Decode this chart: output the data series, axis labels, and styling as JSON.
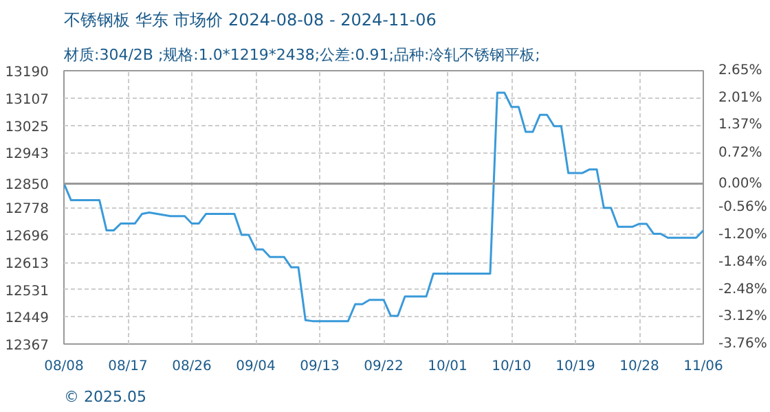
{
  "chart_data": {
    "type": "line",
    "title": "不锈钢板 华东 市场价 2024-08-08 - 2024-11-06",
    "subtitle": "材质:304/2B ;规格:1.0*1219*2438;公差:0.91;品种:冷轧不锈钢平板;",
    "annotations": [
      "© 2025.05"
    ],
    "x": [
      "2024-08-08",
      "2024-08-09",
      "2024-08-13",
      "2024-08-14",
      "2024-08-15",
      "2024-08-16",
      "2024-08-18",
      "2024-08-19",
      "2024-08-20",
      "2024-08-23",
      "2024-08-25",
      "2024-08-26",
      "2024-08-27",
      "2024-08-28",
      "2024-09-01",
      "2024-09-02",
      "2024-09-03",
      "2024-09-04",
      "2024-09-05",
      "2024-09-06",
      "2024-09-08",
      "2024-09-09",
      "2024-09-10",
      "2024-09-11",
      "2024-09-12",
      "2024-09-17",
      "2024-09-18",
      "2024-09-19",
      "2024-09-20",
      "2024-09-22",
      "2024-09-23",
      "2024-09-24",
      "2024-09-25",
      "2024-09-28",
      "2024-09-29",
      "2024-10-07",
      "2024-10-08",
      "2024-10-09",
      "2024-10-10",
      "2024-10-11",
      "2024-10-12",
      "2024-10-13",
      "2024-10-14",
      "2024-10-15",
      "2024-10-16",
      "2024-10-17",
      "2024-10-18",
      "2024-10-20",
      "2024-10-21",
      "2024-10-22",
      "2024-10-23",
      "2024-10-24",
      "2024-10-25",
      "2024-10-27",
      "2024-10-28",
      "2024-10-29",
      "2024-10-30",
      "2024-10-31",
      "2024-11-01",
      "2024-11-05",
      "2024-11-06"
    ],
    "series": [
      {
        "color": "#3a9ad9",
        "values": [
          12850,
          12800,
          12800,
          12709,
          12709,
          12730,
          12730,
          12759,
          12763,
          12752,
          12752,
          12730,
          12730,
          12759,
          12759,
          12696,
          12696,
          12652,
          12652,
          12629,
          12629,
          12598,
          12598,
          12439,
          12436,
          12436,
          12487,
          12487,
          12500,
          12500,
          12452,
          12452,
          12510,
          12510,
          12579,
          12579,
          13124,
          13124,
          13081,
          13081,
          13006,
          13006,
          13057,
          13057,
          13023,
          13023,
          12882,
          12882,
          12893,
          12893,
          12777,
          12777,
          12720,
          12720,
          12729,
          12729,
          12699,
          12699,
          12687,
          12687,
          12709
        ]
      }
    ],
    "xlim": [
      "2024-08-08",
      "2024-11-06"
    ],
    "xticks": [
      {
        "value": "2024-08-08",
        "label": "08/08"
      },
      {
        "value": "2024-08-17",
        "label": "08/17"
      },
      {
        "value": "2024-08-26",
        "label": "08/26"
      },
      {
        "value": "2024-09-04",
        "label": "09/04"
      },
      {
        "value": "2024-09-13",
        "label": "09/13"
      },
      {
        "value": "2024-09-22",
        "label": "09/22"
      },
      {
        "value": "2024-10-01",
        "label": "10/01"
      },
      {
        "value": "2024-10-10",
        "label": "10/10"
      },
      {
        "value": "2024-10-19",
        "label": "10/19"
      },
      {
        "value": "2024-10-28",
        "label": "10/28"
      },
      {
        "value": "2024-11-06",
        "label": "11/06"
      }
    ],
    "ylim": [
      12367,
      13190
    ],
    "yticks": [
      12367,
      12449,
      12531,
      12613,
      12696,
      12778,
      12850,
      12943,
      13025,
      13107,
      13190
    ],
    "y2lim": [
      -3.76,
      2.65
    ],
    "y2ticks": [
      {
        "value": -3.76,
        "label": "-3.76%"
      },
      {
        "value": -3.12,
        "label": "-3.12%"
      },
      {
        "value": -2.48,
        "label": "-2.48%"
      },
      {
        "value": -1.84,
        "label": "-1.84%"
      },
      {
        "value": -1.2,
        "label": "-1.20%"
      },
      {
        "value": -0.56,
        "label": "-0.56%"
      },
      {
        "value": 0,
        "label": "0.00%"
      },
      {
        "value": 0.72,
        "label": "0.72%"
      },
      {
        "value": 1.37,
        "label": "1.37%"
      },
      {
        "value": 2.01,
        "label": "2.01%"
      },
      {
        "value": 2.65,
        "label": "2.65%"
      }
    ],
    "ref_lines": [
      {
        "axis": "y",
        "value": 12850,
        "color": "#999999"
      }
    ],
    "grid": true,
    "marker": "none",
    "line_style": "solid"
  }
}
